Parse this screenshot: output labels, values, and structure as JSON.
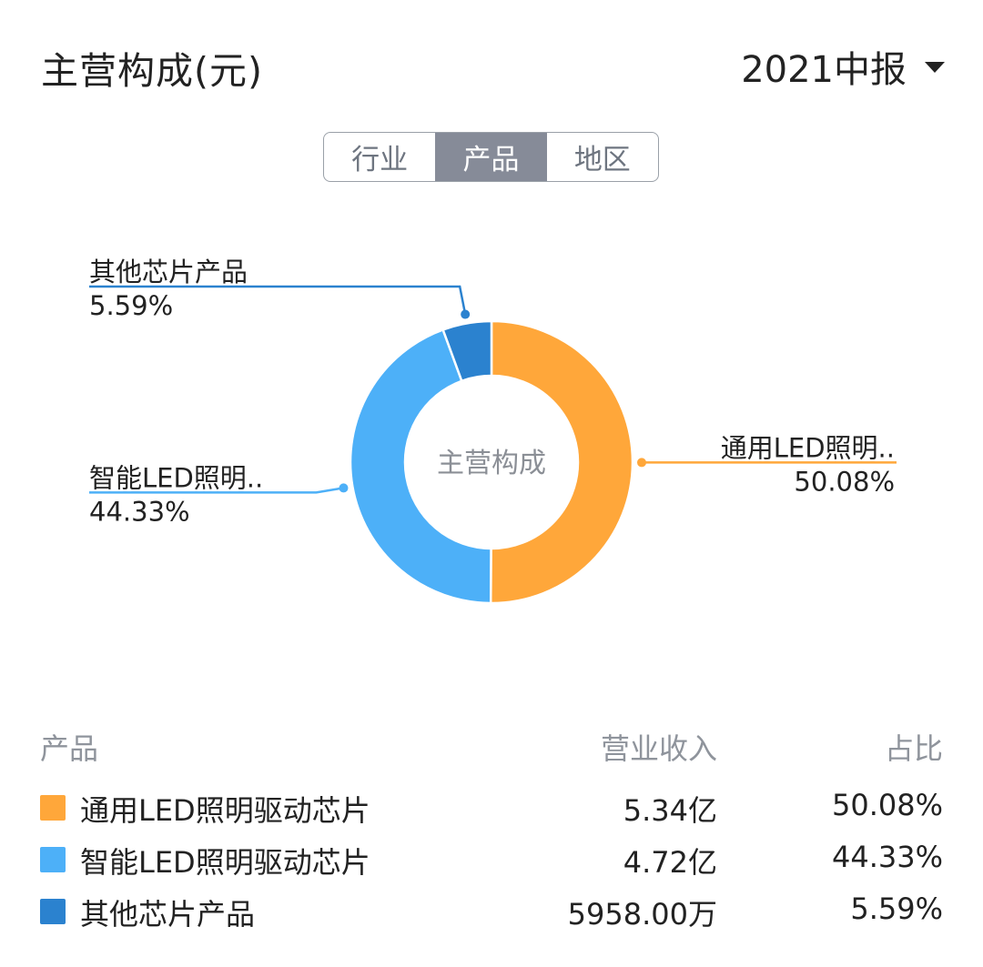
{
  "header": {
    "title": "主营构成(元)",
    "period": "2021中报"
  },
  "tabs": [
    {
      "label": "行业",
      "active": false
    },
    {
      "label": "产品",
      "active": true
    },
    {
      "label": "地区",
      "active": false
    }
  ],
  "chart_data": {
    "type": "pie",
    "variant": "donut",
    "center_label": "主营构成",
    "slices": [
      {
        "label": "通用LED照明驱动芯片",
        "callout": "通用LED照明..",
        "percent": 50.08,
        "percent_text": "50.08%",
        "color": "#FFA73A",
        "label_side": "right"
      },
      {
        "label": "智能LED照明驱动芯片",
        "callout": "智能LED照明..",
        "percent": 44.33,
        "percent_text": "44.33%",
        "color": "#4DB0F8",
        "label_side": "left"
      },
      {
        "label": "其他芯片产品",
        "callout": "其他芯片产品",
        "percent": 5.59,
        "percent_text": "5.59%",
        "color": "#2B82CF",
        "label_side": "left-top"
      }
    ]
  },
  "table": {
    "headers": {
      "name": "产品",
      "revenue": "营业收入",
      "share": "占比"
    },
    "rows": [
      {
        "name": "通用LED照明驱动芯片",
        "revenue": "5.34亿",
        "share": "50.08%",
        "color": "#FFA73A"
      },
      {
        "name": "智能LED照明驱动芯片",
        "revenue": "4.72亿",
        "share": "44.33%",
        "color": "#4DB0F8"
      },
      {
        "name": "其他芯片产品",
        "revenue": "5958.00万",
        "share": "5.59%",
        "color": "#2B82CF"
      }
    ]
  }
}
